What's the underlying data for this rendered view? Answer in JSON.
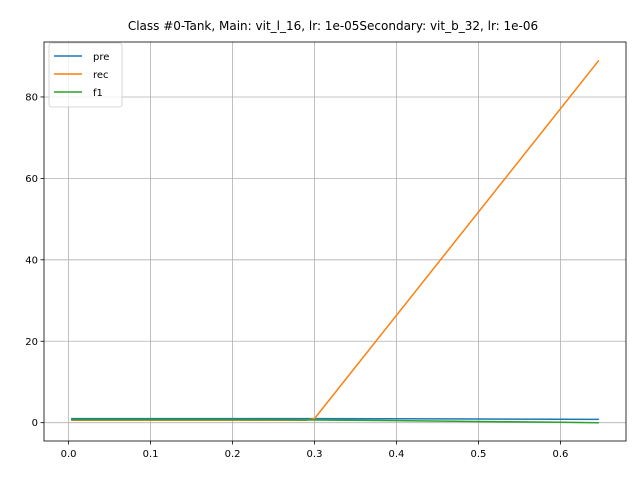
{
  "chart_data": {
    "type": "line",
    "title": "Class #0-Tank, Main: vit_l_16, lr: 1e-05Secondary: vit_b_32, lr: 1e-06",
    "xlabel": "",
    "ylabel": "",
    "xlim": [
      -0.03,
      0.68
    ],
    "ylim": [
      -4.5,
      93.5
    ],
    "x_ticks": [
      0.0,
      0.1,
      0.2,
      0.3,
      0.4,
      0.5,
      0.6
    ],
    "x_tick_labels": [
      "0.0",
      "0.1",
      "0.2",
      "0.3",
      "0.4",
      "0.5",
      "0.6"
    ],
    "y_ticks": [
      0,
      20,
      40,
      60,
      80
    ],
    "y_tick_labels": [
      "0",
      "20",
      "40",
      "60",
      "80"
    ],
    "grid": true,
    "legend_position": "top-left",
    "series": [
      {
        "name": "pre",
        "color": "#1f77b4",
        "x": [
          0.003,
          0.1,
          0.2,
          0.25,
          0.3,
          0.4,
          0.5,
          0.6,
          0.647
        ],
        "y": [
          1.0,
          1.0,
          1.0,
          1.0,
          1.0,
          0.95,
          0.9,
          0.85,
          0.8
        ]
      },
      {
        "name": "rec",
        "color": "#ff7f0e",
        "x": [
          0.003,
          0.1,
          0.2,
          0.25,
          0.29,
          0.3,
          0.647
        ],
        "y": [
          0.6,
          0.6,
          0.6,
          0.6,
          0.6,
          1.0,
          89.0
        ]
      },
      {
        "name": "f1",
        "color": "#2ca02c",
        "x": [
          0.003,
          0.1,
          0.2,
          0.25,
          0.3,
          0.4,
          0.5,
          0.6,
          0.647
        ],
        "y": [
          0.75,
          0.75,
          0.75,
          0.7,
          0.65,
          0.5,
          0.3,
          0.1,
          0.0
        ]
      }
    ]
  }
}
